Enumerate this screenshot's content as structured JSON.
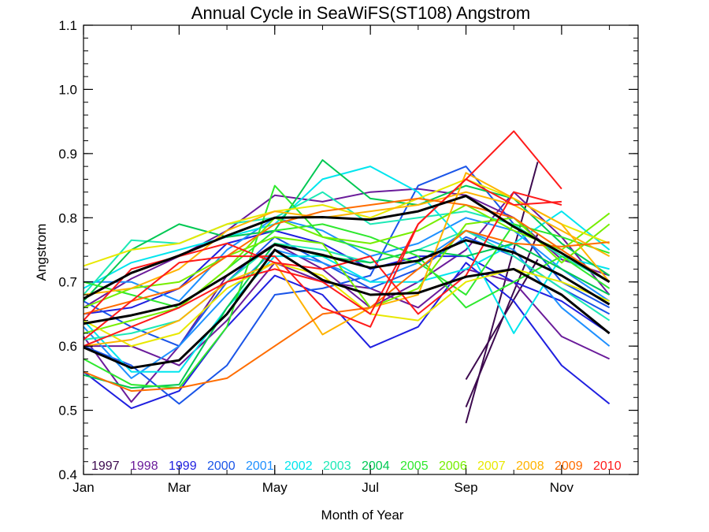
{
  "chart_data": {
    "type": "line",
    "title": "Annual Cycle in SeaWiFS(ST108) Angstrom",
    "xlabel": "Month of Year",
    "ylabel": "Angstrom",
    "xlim": [
      1,
      12.6
    ],
    "ylim": [
      0.4,
      1.1
    ],
    "x_ticks": [
      {
        "x": 1,
        "label": "Jan"
      },
      {
        "x": 3,
        "label": "Mar"
      },
      {
        "x": 5,
        "label": "May"
      },
      {
        "x": 7,
        "label": "Jul"
      },
      {
        "x": 9,
        "label": "Sep"
      },
      {
        "x": 11,
        "label": "Nov"
      }
    ],
    "y_ticks": [
      {
        "y": 0.4,
        "label": "0.4"
      },
      {
        "y": 0.5,
        "label": "0.5"
      },
      {
        "y": 0.6,
        "label": "0.6"
      },
      {
        "y": 0.7,
        "label": "0.7"
      },
      {
        "y": 0.8,
        "label": "0.8"
      },
      {
        "y": 0.9,
        "label": "0.9"
      },
      {
        "y": 1.0,
        "label": "1.0"
      },
      {
        "y": 1.1,
        "label": "1.1"
      }
    ],
    "grid": false,
    "legend_position": "bottom",
    "series": [
      {
        "name": "1997",
        "color": "#3d0a4f",
        "values": [
          {
            "x": [
              9,
              10.5
            ],
            "y": [
              0.48,
              0.887
            ]
          },
          {
            "x": [
              9,
              10.5
            ],
            "y": [
              0.505,
              0.775
            ]
          },
          {
            "x": [
              9,
              10.5
            ],
            "y": [
              0.548,
              0.735
            ]
          }
        ]
      },
      {
        "name": "1998",
        "color": "#6a1b9a",
        "values": [
          {
            "x": [
              1,
              2,
              3,
              4,
              5,
              6,
              7,
              8,
              9,
              10,
              11,
              12
            ],
            "y": [
              0.615,
              0.513,
              0.6,
              0.71,
              0.76,
              0.72,
              0.66,
              0.7,
              0.75,
              0.84,
              0.77,
              0.68
            ]
          },
          {
            "x": [
              1,
              2,
              3,
              4,
              5,
              6,
              7,
              8,
              9,
              10,
              11,
              12
            ],
            "y": [
              0.66,
              0.705,
              0.74,
              0.78,
              0.835,
              0.825,
              0.84,
              0.845,
              0.835,
              0.8,
              0.735,
              0.71
            ]
          },
          {
            "x": [
              1,
              2,
              3,
              4,
              5,
              6,
              7,
              8,
              9,
              10,
              11,
              12
            ],
            "y": [
              0.6,
              0.6,
              0.57,
              0.64,
              0.73,
              0.7,
              0.69,
              0.66,
              0.72,
              0.7,
              0.615,
              0.58
            ]
          }
        ]
      },
      {
        "name": "1999",
        "color": "#1f1fe0",
        "values": [
          {
            "x": [
              1,
              2,
              3,
              4,
              5,
              6,
              7,
              8,
              9,
              10,
              11,
              12
            ],
            "y": [
              0.56,
              0.503,
              0.53,
              0.63,
              0.71,
              0.68,
              0.598,
              0.63,
              0.73,
              0.67,
              0.57,
              0.51
            ]
          },
          {
            "x": [
              1,
              2,
              3,
              4,
              5,
              6,
              7,
              8,
              9,
              10,
              11,
              12
            ],
            "y": [
              0.65,
              0.66,
              0.69,
              0.76,
              0.78,
              0.76,
              0.72,
              0.74,
              0.74,
              0.7,
              0.67,
              0.62
            ]
          }
        ]
      },
      {
        "name": "2000",
        "color": "#1a55e8",
        "values": [
          {
            "x": [
              1,
              2,
              3,
              4,
              5,
              6,
              7,
              8,
              9,
              10,
              11,
              12
            ],
            "y": [
              0.6,
              0.57,
              0.51,
              0.57,
              0.68,
              0.69,
              0.71,
              0.85,
              0.88,
              0.79,
              0.7,
              0.66
            ]
          },
          {
            "x": [
              1,
              2,
              3,
              4,
              5,
              6,
              7,
              8,
              9,
              10,
              11,
              12
            ],
            "y": [
              0.67,
              0.63,
              0.6,
              0.7,
              0.77,
              0.73,
              0.69,
              0.72,
              0.77,
              0.74,
              0.69,
              0.65
            ]
          }
        ]
      },
      {
        "name": "2001",
        "color": "#1e90ff",
        "values": [
          {
            "x": [
              1,
              2,
              3,
              4,
              5,
              6,
              7,
              8,
              9,
              10,
              11,
              12
            ],
            "y": [
              0.63,
              0.55,
              0.6,
              0.68,
              0.75,
              0.73,
              0.7,
              0.73,
              0.78,
              0.75,
              0.66,
              0.6
            ]
          },
          {
            "x": [
              1,
              2,
              3,
              4,
              5,
              6,
              7,
              8,
              9,
              10,
              11,
              12
            ],
            "y": [
              0.7,
              0.7,
              0.67,
              0.75,
              0.8,
              0.78,
              0.74,
              0.76,
              0.8,
              0.78,
              0.72,
              0.67
            ]
          }
        ]
      },
      {
        "name": "2002",
        "color": "#00e5ee",
        "values": [
          {
            "x": [
              1,
              2,
              3,
              4,
              5,
              6,
              7,
              8,
              9,
              10,
              11,
              12
            ],
            "y": [
              0.69,
              0.73,
              0.75,
              0.77,
              0.79,
              0.86,
              0.88,
              0.84,
              0.76,
              0.62,
              0.74,
              0.72
            ]
          },
          {
            "x": [
              1,
              2,
              3,
              4,
              5,
              6,
              7,
              8,
              9,
              10,
              11,
              12
            ],
            "y": [
              0.64,
              0.56,
              0.56,
              0.66,
              0.74,
              0.74,
              0.7,
              0.7,
              0.72,
              0.76,
              0.81,
              0.75
            ]
          }
        ]
      },
      {
        "name": "2003",
        "color": "#1de9b6",
        "values": [
          {
            "x": [
              1,
              2,
              3,
              4,
              5,
              6,
              7,
              8,
              9,
              10,
              11,
              12
            ],
            "y": [
              0.61,
              0.62,
              0.64,
              0.7,
              0.76,
              0.75,
              0.73,
              0.75,
              0.78,
              0.74,
              0.69,
              0.64
            ]
          },
          {
            "x": [
              1,
              2,
              3,
              4,
              5,
              6,
              7,
              8,
              9,
              10,
              11,
              12
            ],
            "y": [
              0.68,
              0.765,
              0.76,
              0.79,
              0.8,
              0.84,
              0.79,
              0.8,
              0.81,
              0.79,
              0.74,
              0.7
            ]
          }
        ]
      },
      {
        "name": "2004",
        "color": "#00c853",
        "values": [
          {
            "x": [
              1,
              2,
              3,
              4,
              5,
              6,
              7,
              8,
              9,
              10,
              11,
              12
            ],
            "y": [
              0.555,
              0.535,
              0.54,
              0.66,
              0.76,
              0.74,
              0.73,
              0.75,
              0.74,
              0.76,
              0.72,
              0.68
            ]
          },
          {
            "x": [
              1,
              2,
              3,
              4,
              5,
              6,
              7,
              8,
              9,
              10,
              11,
              12
            ],
            "y": [
              0.67,
              0.75,
              0.79,
              0.77,
              0.78,
              0.89,
              0.83,
              0.82,
              0.85,
              0.83,
              0.76,
              0.71
            ]
          }
        ]
      },
      {
        "name": "2005",
        "color": "#2ee82e",
        "values": [
          {
            "x": [
              1,
              2,
              3,
              4,
              5,
              6,
              7,
              8,
              9,
              10,
              11,
              12
            ],
            "y": [
              0.58,
              0.54,
              0.535,
              0.63,
              0.85,
              0.77,
              0.75,
              0.73,
              0.68,
              0.79,
              0.77,
              0.745
            ]
          },
          {
            "x": [
              1,
              2,
              3,
              4,
              5,
              6,
              7,
              8,
              9,
              10,
              11,
              12
            ],
            "y": [
              0.7,
              0.68,
              0.66,
              0.72,
              0.78,
              0.79,
              0.77,
              0.74,
              0.66,
              0.7,
              0.74,
              0.69
            ]
          }
        ]
      },
      {
        "name": "2006",
        "color": "#76ee00",
        "values": [
          {
            "x": [
              1,
              2,
              3,
              4,
              5,
              6,
              7,
              8,
              9,
              10,
              11,
              12
            ],
            "y": [
              0.62,
              0.64,
              0.66,
              0.72,
              0.8,
              0.77,
              0.76,
              0.78,
              0.82,
              0.78,
              0.75,
              0.807
            ]
          },
          {
            "x": [
              1,
              2,
              3,
              4,
              5,
              6,
              7,
              8,
              9,
              10,
              11,
              12
            ],
            "y": [
              0.66,
              0.69,
              0.7,
              0.74,
              0.77,
              0.76,
              0.66,
              0.69,
              0.79,
              0.8,
              0.73,
              0.79
            ]
          }
        ]
      },
      {
        "name": "2007",
        "color": "#e8e800",
        "values": [
          {
            "x": [
              1,
              2,
              3,
              4,
              5,
              6,
              7,
              8,
              9,
              10,
              11,
              12
            ],
            "y": [
              0.725,
              0.75,
              0.76,
              0.79,
              0.81,
              0.82,
              0.8,
              0.83,
              0.86,
              0.83,
              0.79,
              0.76
            ]
          },
          {
            "x": [
              1,
              2,
              3,
              4,
              5,
              6,
              7,
              8,
              9,
              10,
              11,
              12
            ],
            "y": [
              0.64,
              0.6,
              0.62,
              0.69,
              0.73,
              0.71,
              0.65,
              0.64,
              0.7,
              0.72,
              0.7,
              0.67
            ]
          }
        ]
      },
      {
        "name": "2008",
        "color": "#ffb300",
        "values": [
          {
            "x": [
              1,
              2,
              3,
              4,
              5,
              6,
              7,
              8,
              9,
              10,
              11,
              12
            ],
            "y": [
              0.6,
              0.61,
              0.64,
              0.7,
              0.73,
              0.618,
              0.66,
              0.68,
              0.87,
              0.83,
              0.79,
              0.7
            ]
          },
          {
            "x": [
              1,
              2,
              3,
              4,
              5,
              6,
              7,
              8,
              9,
              10,
              11,
              12
            ],
            "y": [
              0.68,
              0.69,
              0.72,
              0.78,
              0.81,
              0.8,
              0.81,
              0.82,
              0.84,
              0.82,
              0.78,
              0.74
            ]
          }
        ]
      },
      {
        "name": "2009",
        "color": "#ff6d00",
        "values": [
          {
            "x": [
              1,
              2,
              3,
              4,
              5,
              6,
              7,
              8,
              9,
              10,
              11,
              12
            ],
            "y": [
              0.56,
              0.53,
              0.535,
              0.55,
              0.6,
              0.65,
              0.66,
              0.72,
              0.78,
              0.76,
              0.755,
              0.762
            ]
          },
          {
            "x": [
              1,
              2,
              3,
              4,
              5,
              6,
              7,
              8,
              9,
              10,
              11,
              12
            ],
            "y": [
              0.65,
              0.67,
              0.69,
              0.74,
              0.79,
              0.81,
              0.82,
              0.83,
              0.82,
              0.8,
              0.75,
              0.7
            ]
          }
        ]
      },
      {
        "name": "2010",
        "color": "#ff1a1a",
        "values": [
          {
            "x": [
              1,
              2,
              3,
              4,
              5,
              6,
              7,
              8,
              9,
              10,
              11
            ],
            "y": [
              0.61,
              0.67,
              0.73,
              0.74,
              0.74,
              0.66,
              0.63,
              0.79,
              0.86,
              0.935,
              0.845
            ]
          },
          {
            "x": [
              1,
              2,
              3,
              4,
              5,
              6,
              7,
              8,
              9,
              10,
              11
            ],
            "y": [
              0.64,
              0.72,
              0.74,
              0.76,
              0.73,
              0.72,
              0.74,
              0.65,
              0.71,
              0.84,
              0.82
            ]
          },
          {
            "x": [
              1,
              2,
              3,
              4,
              5,
              6,
              7,
              8,
              9,
              10,
              11
            ],
            "y": [
              0.6,
              0.63,
              0.66,
              0.7,
              0.72,
              0.7,
              0.65,
              0.79,
              0.86,
              0.82,
              0.825
            ]
          }
        ]
      }
    ],
    "summary_lines": {
      "color": "#000000",
      "lines": [
        {
          "x": [
            1,
            2,
            3,
            4,
            5,
            6,
            7,
            8,
            9,
            10,
            11,
            12
          ],
          "y": [
            0.674,
            0.714,
            0.741,
            0.772,
            0.8,
            0.801,
            0.797,
            0.81,
            0.834,
            0.786,
            0.745,
            0.7
          ]
        },
        {
          "x": [
            1,
            2,
            3,
            4,
            5,
            6,
            7,
            8,
            9,
            10,
            11,
            12
          ],
          "y": [
            0.635,
            0.648,
            0.665,
            0.71,
            0.758,
            0.742,
            0.722,
            0.733,
            0.765,
            0.746,
            0.71,
            0.665
          ]
        },
        {
          "x": [
            1,
            2,
            3,
            4,
            5,
            6,
            7,
            8,
            9,
            10,
            11,
            12
          ],
          "y": [
            0.598,
            0.566,
            0.578,
            0.65,
            0.75,
            0.703,
            0.68,
            0.683,
            0.708,
            0.72,
            0.68,
            0.62
          ]
        }
      ]
    }
  }
}
